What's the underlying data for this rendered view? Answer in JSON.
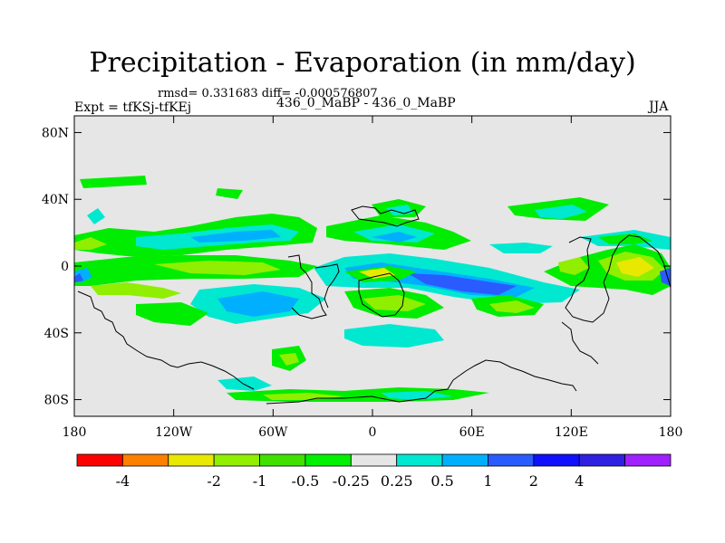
{
  "title": "Precipitation - Evaporation (in mm/day)",
  "stats": "rmsd= 0.331683 diff= -0.000576807",
  "experiment": "Expt = tfKSj-tfKEj",
  "case": "436_0_MaBP - 436_0_MaBP",
  "season": "JJA",
  "map": {
    "lon_range": [
      -180,
      180
    ],
    "lat_range": [
      -90,
      90
    ],
    "x_ticks": [
      {
        "lon": -180,
        "label": "180"
      },
      {
        "lon": -120,
        "label": "120W"
      },
      {
        "lon": -60,
        "label": "60W"
      },
      {
        "lon": 0,
        "label": "0"
      },
      {
        "lon": 60,
        "label": "60E"
      },
      {
        "lon": 120,
        "label": "120E"
      },
      {
        "lon": 180,
        "label": "180"
      }
    ],
    "y_ticks": [
      {
        "lat": 80,
        "label": "80N"
      },
      {
        "lat": 40,
        "label": "40N"
      },
      {
        "lat": 0,
        "label": "0"
      },
      {
        "lat": -40,
        "label": "40S"
      },
      {
        "lat": -80,
        "label": "80S"
      }
    ]
  },
  "colorbar": {
    "colors": [
      "#ff0000",
      "#ff8000",
      "#e8e800",
      "#90ee00",
      "#40e000",
      "#00f000",
      "#e6e6e6",
      "#00e8d0",
      "#00b0ff",
      "#2a5bff",
      "#1010ff",
      "#3020e0",
      "#a020ff"
    ],
    "labels": [
      "-4",
      "-2",
      "-1",
      "-0.5",
      "-0.25",
      "0.25",
      "0.5",
      "1",
      "2",
      "4"
    ]
  },
  "colors": {
    "background": "#e6e6e6",
    "green": "#00ec00",
    "light_green": "#90ee00",
    "yellow": "#e8e800",
    "cyan": "#00e8d0",
    "light_blue": "#00b0ff",
    "blue": "#2a5bff"
  }
}
